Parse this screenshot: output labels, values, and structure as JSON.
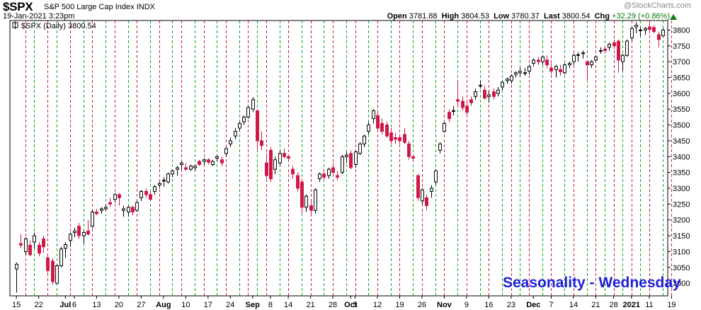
{
  "header": {
    "ticker": "$SPX",
    "name": "S&P 500 Large Cap Index",
    "exchange": "INDX",
    "datetime": "19-Jan-2021 3:23pm",
    "open_label": "Open",
    "open": "3781.88",
    "high_label": "High",
    "high": "3804.53",
    "low_label": "Low",
    "low": "3780.37",
    "last_label": "Last",
    "last": "3800.54",
    "chg_label": "Chg",
    "chg": "+32.29 (+0.86%)",
    "watermark": "@StockCharts.com"
  },
  "legend": "$SPX (Daily) 3800.54",
  "annotation": "Seasonality - Wednesday",
  "colors": {
    "up": "#ffffff",
    "down": "#d01646",
    "outline": "#000000",
    "wed_line": "#d01646",
    "mon_line": "#16a016",
    "annotation": "#1c20d6"
  },
  "chart_data": {
    "type": "candlestick",
    "title": "$SPX (Daily) 3800.54",
    "ylim": [
      2960,
      3830
    ],
    "y_ticks": [
      3000,
      3050,
      3100,
      3150,
      3200,
      3250,
      3300,
      3350,
      3400,
      3450,
      3500,
      3550,
      3600,
      3650,
      3700,
      3750,
      3800
    ],
    "x_tick_labels": [
      {
        "index": 0,
        "label": "15"
      },
      {
        "index": 5,
        "label": "22"
      },
      {
        "index": 11,
        "label": "Jul"
      },
      {
        "index": 13,
        "label": "6"
      },
      {
        "index": 18,
        "label": "13"
      },
      {
        "index": 23,
        "label": "20"
      },
      {
        "index": 28,
        "label": "27"
      },
      {
        "index": 33,
        "label": "Aug"
      },
      {
        "index": 38,
        "label": "10"
      },
      {
        "index": 43,
        "label": "17"
      },
      {
        "index": 48,
        "label": "24"
      },
      {
        "index": 53,
        "label": "Sep"
      },
      {
        "index": 57,
        "label": "8"
      },
      {
        "index": 61,
        "label": "14"
      },
      {
        "index": 66,
        "label": "21"
      },
      {
        "index": 71,
        "label": "28"
      },
      {
        "index": 75,
        "label": "Oct"
      },
      {
        "index": 76,
        "label": "5"
      },
      {
        "index": 81,
        "label": "12"
      },
      {
        "index": 86,
        "label": "19"
      },
      {
        "index": 91,
        "label": "26"
      },
      {
        "index": 96,
        "label": "Nov"
      },
      {
        "index": 101,
        "label": "9"
      },
      {
        "index": 106,
        "label": "16"
      },
      {
        "index": 111,
        "label": "23"
      },
      {
        "index": 116,
        "label": "Dec"
      },
      {
        "index": 120,
        "label": "7"
      },
      {
        "index": 125,
        "label": "14"
      },
      {
        "index": 130,
        "label": "21"
      },
      {
        "index": 134,
        "label": "28"
      },
      {
        "index": 138,
        "label": "2021"
      },
      {
        "index": 142,
        "label": "11"
      },
      {
        "index": 147,
        "label": "19"
      }
    ],
    "wednesday_lines": [
      2,
      7,
      12,
      17,
      22,
      27,
      32,
      37,
      42,
      47,
      52,
      56,
      61,
      66,
      71,
      76,
      81,
      86,
      91,
      96,
      101,
      106,
      111,
      115,
      120,
      125,
      130,
      134,
      138,
      142,
      147
    ],
    "monday_lines": [
      4,
      9,
      15,
      20,
      25,
      30,
      35,
      40,
      45,
      50,
      54,
      59,
      64,
      69,
      74,
      79,
      84,
      89,
      94,
      99,
      104,
      109,
      113,
      118,
      123,
      128,
      132,
      136,
      140,
      145
    ],
    "grid": "vertical dashed lines",
    "ohlc": [
      [
        3045,
        3065,
        2970,
        3060
      ],
      [
        3125,
        3155,
        3110,
        3120
      ],
      [
        3100,
        3145,
        3090,
        3140
      ],
      [
        3120,
        3135,
        3085,
        3090
      ],
      [
        3130,
        3160,
        3110,
        3150
      ],
      [
        3120,
        3130,
        3085,
        3095
      ],
      [
        3140,
        3150,
        3095,
        3115
      ],
      [
        3080,
        3090,
        3025,
        3040
      ],
      [
        3070,
        3080,
        2995,
        3005
      ],
      [
        3000,
        3060,
        2998,
        3055
      ],
      [
        3055,
        3115,
        3050,
        3108
      ],
      [
        3110,
        3130,
        3080,
        3122
      ],
      [
        3135,
        3160,
        3115,
        3155
      ],
      [
        3160,
        3175,
        3145,
        3165
      ],
      [
        3180,
        3190,
        3140,
        3150
      ],
      [
        3150,
        3165,
        3125,
        3160
      ],
      [
        3165,
        3200,
        3150,
        3155
      ],
      [
        3180,
        3230,
        3175,
        3225
      ],
      [
        3225,
        3235,
        3215,
        3220
      ],
      [
        3230,
        3240,
        3220,
        3235
      ],
      [
        3235,
        3250,
        3230,
        3240
      ],
      [
        3255,
        3270,
        3240,
        3250
      ],
      [
        3265,
        3285,
        3255,
        3280
      ],
      [
        3280,
        3285,
        3245,
        3270
      ],
      [
        3230,
        3245,
        3210,
        3235
      ],
      [
        3225,
        3245,
        3210,
        3240
      ],
      [
        3240,
        3245,
        3215,
        3225
      ],
      [
        3230,
        3260,
        3225,
        3255
      ],
      [
        3270,
        3295,
        3260,
        3290
      ],
      [
        3290,
        3300,
        3270,
        3280
      ],
      [
        3280,
        3290,
        3260,
        3265
      ],
      [
        3290,
        3310,
        3280,
        3305
      ],
      [
        3310,
        3320,
        3300,
        3315
      ],
      [
        3325,
        3335,
        3305,
        3325
      ],
      [
        3320,
        3350,
        3315,
        3345
      ],
      [
        3345,
        3360,
        3335,
        3355
      ],
      [
        3360,
        3370,
        3340,
        3365
      ],
      [
        3375,
        3385,
        3360,
        3380
      ],
      [
        3365,
        3380,
        3355,
        3360
      ],
      [
        3360,
        3375,
        3355,
        3370
      ],
      [
        3365,
        3375,
        3355,
        3370
      ],
      [
        3385,
        3390,
        3370,
        3375
      ],
      [
        3385,
        3395,
        3375,
        3390
      ],
      [
        3390,
        3395,
        3375,
        3382
      ],
      [
        3375,
        3390,
        3370,
        3385
      ],
      [
        3395,
        3405,
        3385,
        3400
      ],
      [
        3390,
        3400,
        3370,
        3380
      ],
      [
        3410,
        3430,
        3400,
        3425
      ],
      [
        3440,
        3460,
        3430,
        3450
      ],
      [
        3465,
        3490,
        3455,
        3480
      ],
      [
        3490,
        3510,
        3480,
        3505
      ],
      [
        3510,
        3530,
        3500,
        3525
      ],
      [
        3525,
        3560,
        3520,
        3555
      ],
      [
        3550,
        3588,
        3540,
        3580
      ],
      [
        3545,
        3550,
        3420,
        3450
      ],
      [
        3450,
        3480,
        3420,
        3435
      ],
      [
        3380,
        3410,
        3330,
        3340
      ],
      [
        3420,
        3430,
        3320,
        3330
      ],
      [
        3360,
        3400,
        3345,
        3390
      ],
      [
        3380,
        3420,
        3370,
        3410
      ],
      [
        3410,
        3425,
        3395,
        3400
      ],
      [
        3400,
        3405,
        3390,
        3395
      ],
      [
        3360,
        3370,
        3330,
        3345
      ],
      [
        3340,
        3350,
        3290,
        3300
      ],
      [
        3320,
        3330,
        3220,
        3240
      ],
      [
        3240,
        3280,
        3225,
        3275
      ],
      [
        3245,
        3260,
        3215,
        3230
      ],
      [
        3230,
        3300,
        3220,
        3295
      ],
      [
        3330,
        3350,
        3320,
        3345
      ],
      [
        3345,
        3360,
        3325,
        3335
      ],
      [
        3340,
        3365,
        3330,
        3360
      ],
      [
        3365,
        3380,
        3345,
        3350
      ],
      [
        3340,
        3355,
        3325,
        3335
      ],
      [
        3350,
        3405,
        3345,
        3400
      ],
      [
        3400,
        3415,
        3380,
        3405
      ],
      [
        3410,
        3420,
        3360,
        3365
      ],
      [
        3375,
        3420,
        3365,
        3415
      ],
      [
        3410,
        3445,
        3405,
        3440
      ],
      [
        3440,
        3470,
        3430,
        3465
      ],
      [
        3480,
        3510,
        3470,
        3500
      ],
      [
        3520,
        3550,
        3505,
        3545
      ],
      [
        3530,
        3545,
        3480,
        3490
      ],
      [
        3505,
        3520,
        3470,
        3480
      ],
      [
        3500,
        3510,
        3460,
        3465
      ],
      [
        3475,
        3490,
        3440,
        3450
      ],
      [
        3460,
        3475,
        3440,
        3455
      ],
      [
        3460,
        3470,
        3440,
        3450
      ],
      [
        3470,
        3490,
        3440,
        3445
      ],
      [
        3440,
        3450,
        3390,
        3400
      ],
      [
        3400,
        3405,
        3385,
        3395
      ],
      [
        3340,
        3345,
        3260,
        3270
      ],
      [
        3260,
        3300,
        3250,
        3295
      ],
      [
        3270,
        3280,
        3230,
        3245
      ],
      [
        3290,
        3310,
        3270,
        3300
      ],
      [
        3320,
        3360,
        3310,
        3355
      ],
      [
        3420,
        3445,
        3410,
        3440
      ],
      [
        3480,
        3510,
        3475,
        3505
      ],
      [
        3540,
        3550,
        3510,
        3520
      ],
      [
        3545,
        3560,
        3530,
        3545
      ],
      [
        3580,
        3640,
        3555,
        3575
      ],
      [
        3575,
        3590,
        3545,
        3555
      ],
      [
        3560,
        3575,
        3530,
        3540
      ],
      [
        3580,
        3590,
        3560,
        3570
      ],
      [
        3590,
        3615,
        3580,
        3605
      ],
      [
        3625,
        3640,
        3615,
        3625
      ],
      [
        3610,
        3625,
        3580,
        3585
      ],
      [
        3590,
        3610,
        3570,
        3595
      ],
      [
        3605,
        3615,
        3580,
        3590
      ],
      [
        3600,
        3620,
        3590,
        3610
      ],
      [
        3620,
        3640,
        3610,
        3635
      ],
      [
        3640,
        3650,
        3630,
        3645
      ],
      [
        3640,
        3660,
        3630,
        3655
      ],
      [
        3660,
        3670,
        3650,
        3665
      ],
      [
        3665,
        3680,
        3655,
        3670
      ],
      [
        3665,
        3680,
        3655,
        3665
      ],
      [
        3670,
        3690,
        3660,
        3685
      ],
      [
        3695,
        3710,
        3685,
        3705
      ],
      [
        3705,
        3715,
        3690,
        3700
      ],
      [
        3700,
        3720,
        3690,
        3715
      ],
      [
        3705,
        3720,
        3680,
        3690
      ],
      [
        3680,
        3695,
        3660,
        3670
      ],
      [
        3675,
        3690,
        3650,
        3685
      ],
      [
        3675,
        3690,
        3655,
        3668
      ],
      [
        3665,
        3695,
        3660,
        3690
      ],
      [
        3690,
        3700,
        3680,
        3695
      ],
      [
        3700,
        3725,
        3690,
        3720
      ],
      [
        3720,
        3730,
        3700,
        3722
      ],
      [
        3725,
        3735,
        3710,
        3728
      ],
      [
        3700,
        3705,
        3640,
        3690
      ],
      [
        3690,
        3705,
        3680,
        3700
      ],
      [
        3705,
        3720,
        3700,
        3715
      ],
      [
        3735,
        3745,
        3725,
        3735
      ],
      [
        3740,
        3750,
        3725,
        3735
      ],
      [
        3745,
        3760,
        3735,
        3755
      ],
      [
        3760,
        3770,
        3740,
        3750
      ],
      [
        3765,
        3770,
        3665,
        3705
      ],
      [
        3700,
        3725,
        3670,
        3720
      ],
      [
        3720,
        3770,
        3715,
        3765
      ],
      [
        3775,
        3810,
        3765,
        3805
      ],
      [
        3810,
        3825,
        3790,
        3815
      ],
      [
        3800,
        3810,
        3780,
        3800
      ],
      [
        3800,
        3810,
        3785,
        3805
      ],
      [
        3810,
        3820,
        3790,
        3802
      ],
      [
        3808,
        3815,
        3790,
        3795
      ],
      [
        3785,
        3795,
        3745,
        3770
      ],
      [
        3782,
        3805,
        3780,
        3800
      ]
    ]
  }
}
